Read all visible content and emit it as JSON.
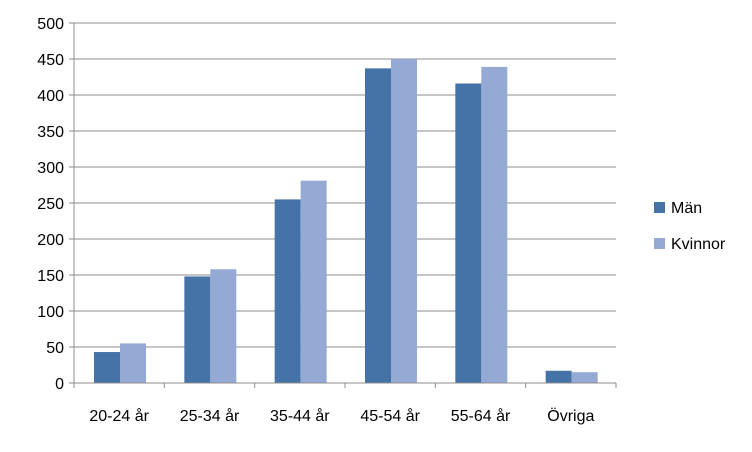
{
  "chart_data": {
    "type": "bar",
    "title": "",
    "xlabel": "",
    "ylabel": "",
    "categories": [
      "20-24 år",
      "25-34 år",
      "35-44 år",
      "45-54 år",
      "55-64 år",
      "Övriga"
    ],
    "series": [
      {
        "name": "Män",
        "color": "#4572A7",
        "values": [
          43,
          148,
          255,
          437,
          416,
          17
        ]
      },
      {
        "name": "Kvinnor",
        "color": "#94A9D4",
        "values": [
          55,
          158,
          281,
          450,
          439,
          15
        ]
      }
    ],
    "ylim": [
      0,
      500
    ],
    "yticks": [
      0,
      50,
      100,
      150,
      200,
      250,
      300,
      350,
      400,
      450,
      500
    ],
    "grid": true,
    "legend": "right"
  }
}
